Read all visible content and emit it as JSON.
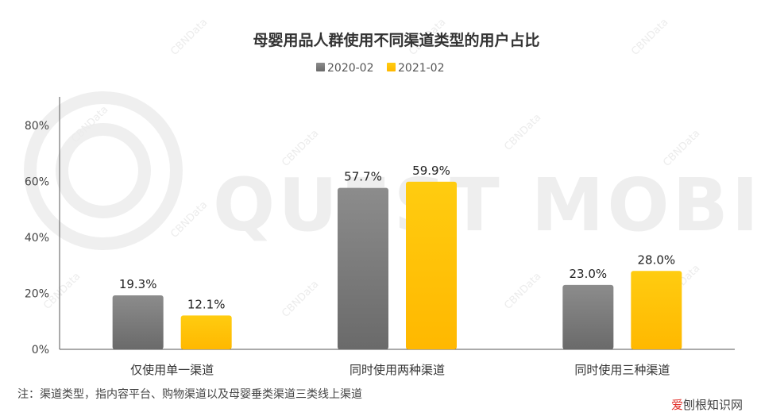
{
  "watermark": {
    "logo_text": "QUEST MOBILE",
    "tiles": [
      "CBNData",
      "CBNData",
      "CBNData",
      "CBNData",
      "CBNData",
      "CBNData",
      "CBNData",
      "CBNData",
      "CBNData",
      "CBNData",
      "CBNData",
      "CBNData"
    ]
  },
  "note": "注：渠道类型，指内容平台、购物渠道以及母婴垂类渠道三类线上渠道",
  "brand": {
    "accent": "爱",
    "rest": "刨根知识网"
  },
  "colors": {
    "series_2020": "#7b7b7b",
    "series_2021": "#ffc000",
    "axis": "#555555"
  },
  "chart_data": {
    "type": "bar",
    "title": "母婴用品人群使用不同渠道类型的用户占比",
    "categories": [
      "仅使用单一渠道",
      "同时使用两种渠道",
      "同时使用三种渠道"
    ],
    "series": [
      {
        "name": "2020-02",
        "values": [
          19.3,
          57.7,
          23.0
        ],
        "labels": [
          "19.3%",
          "57.7%",
          "23.0%"
        ]
      },
      {
        "name": "2021-02",
        "values": [
          12.1,
          59.9,
          28.0
        ],
        "labels": [
          "12.1%",
          "59.9%",
          "28.0%"
        ]
      }
    ],
    "yticks": [
      "0%",
      "20%",
      "40%",
      "60%",
      "80%"
    ],
    "ylim": [
      0,
      80
    ],
    "xlabel": "",
    "ylabel": "",
    "legend": "top-center",
    "grid": false
  }
}
